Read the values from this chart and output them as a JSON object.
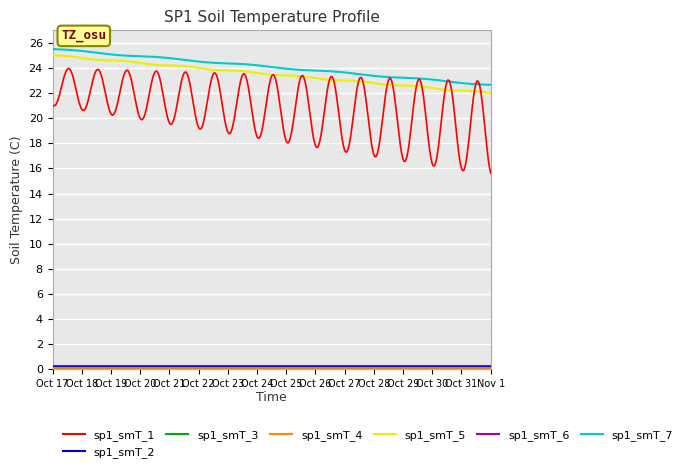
{
  "title": "SP1 Soil Temperature Profile",
  "xlabel": "Time",
  "ylabel": "Soil Temperature (C)",
  "annotation_text": "TZ_osu",
  "annotation_color": "#800000",
  "annotation_bg": "#ffff99",
  "annotation_border": "#888800",
  "ylim": [
    0,
    27
  ],
  "yticks": [
    0,
    2,
    4,
    6,
    8,
    10,
    12,
    14,
    16,
    18,
    20,
    22,
    24,
    26
  ],
  "fig_bg": "#ffffff",
  "plot_bg": "#e8e8e8",
  "grid_color": "#ffffff",
  "series": {
    "sp1_smT_1": {
      "color": "#ff0000",
      "lw": 1.2,
      "zorder": 5
    },
    "sp1_smT_2": {
      "color": "#0000cc",
      "lw": 1.2,
      "zorder": 4
    },
    "sp1_smT_3": {
      "color": "#00aa00",
      "lw": 1.2,
      "zorder": 4
    },
    "sp1_smT_4": {
      "color": "#ff8800",
      "lw": 1.2,
      "zorder": 4
    },
    "sp1_smT_5": {
      "color": "#eeee00",
      "lw": 1.5,
      "zorder": 4
    },
    "sp1_smT_6": {
      "color": "#aa00aa",
      "lw": 1.5,
      "zorder": 3
    },
    "sp1_smT_7": {
      "color": "#00cccc",
      "lw": 1.5,
      "zorder": 4
    }
  },
  "xtick_labels": [
    "Oct 17",
    "Oct 18",
    "Oct 19",
    "Oct 20",
    "Oct 21",
    "Oct 22",
    "Oct 23",
    "Oct 24",
    "Oct 25",
    "Oct 26",
    "Oct 27",
    "Oct 28",
    "Oct 29",
    "Oct 30",
    "Oct 31",
    "Nov 1"
  ],
  "legend_labels": [
    "sp1_smT_1",
    "sp1_smT_2",
    "sp1_smT_3",
    "sp1_smT_4",
    "sp1_smT_5",
    "sp1_smT_6",
    "sp1_smT_7"
  ],
  "num_points": 360
}
